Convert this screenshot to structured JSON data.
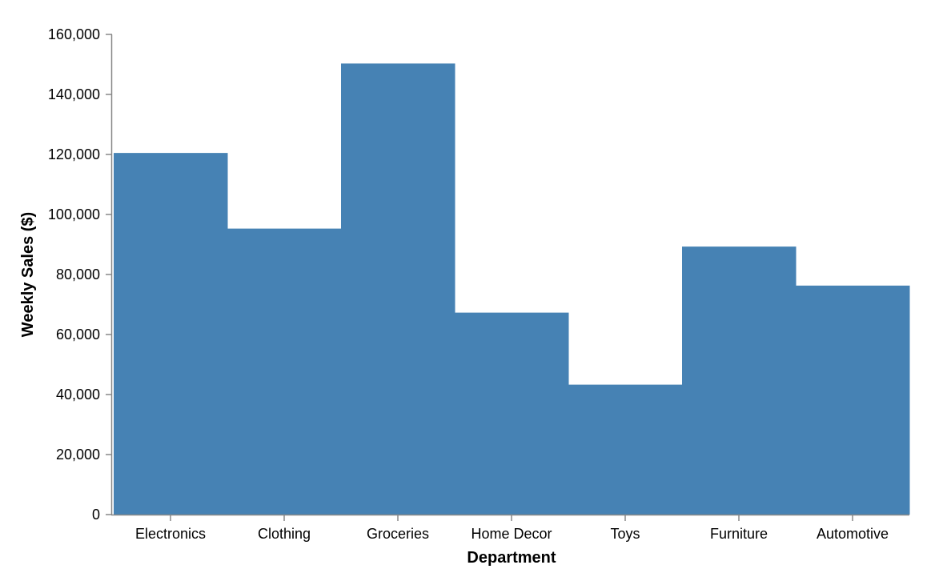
{
  "chart_data": {
    "type": "bar",
    "xlabel": "Department",
    "ylabel": "Weekly Sales ($)",
    "categories": [
      "Electronics",
      "Clothing",
      "Groceries",
      "Home Decor",
      "Toys",
      "Furniture",
      "Automotive"
    ],
    "values": [
      120500,
      95300,
      150300,
      67300,
      43300,
      89300,
      76300
    ],
    "ylim": [
      0,
      160000
    ],
    "yticks": [
      0,
      20000,
      40000,
      60000,
      80000,
      100000,
      120000,
      140000,
      160000
    ],
    "ytick_labels": [
      "0",
      "20,000",
      "40,000",
      "60,000",
      "80,000",
      "100,000",
      "120,000",
      "140,000",
      "160,000"
    ],
    "bar_color": "#4682b4",
    "axis_color": "#888888",
    "grid": false,
    "legend": "none"
  }
}
